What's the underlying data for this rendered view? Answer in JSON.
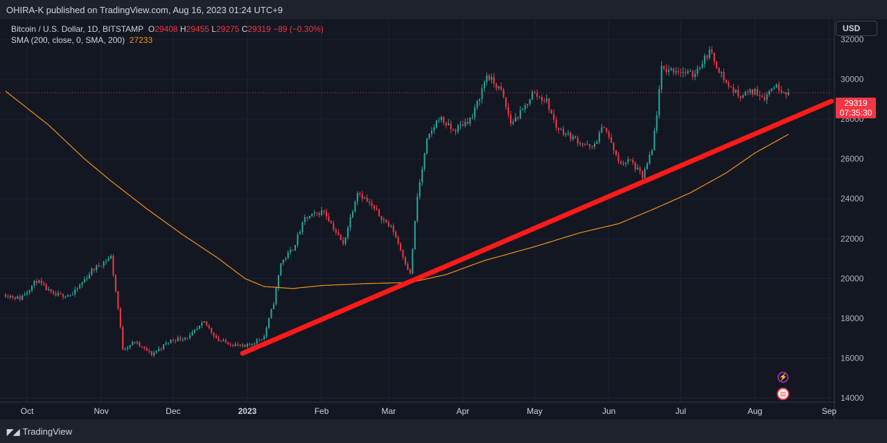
{
  "header": {
    "publisher": "OHIRA-K published on TradingView.com, Aug 16, 2023 01:24 UTC+9"
  },
  "legend": {
    "symbol": "Bitcoin / U.S. Dollar, 1D, BITSTAMP",
    "o_label": "O",
    "o_value": "29408",
    "h_label": "H",
    "h_value": "29455",
    "l_label": "L",
    "l_value": "29275",
    "c_label": "C",
    "c_value": "29319",
    "change": "−89 (−0.30%)",
    "sma_label": "SMA (200, close, 0, SMA, 200)",
    "sma_value": "27233"
  },
  "currency": "USD",
  "last_price": {
    "price": "29319",
    "countdown": "07:35:30"
  },
  "footer": {
    "brand": "TradingView"
  },
  "colors": {
    "up": "#26a69a",
    "down": "#f23645",
    "sma": "#f7931a",
    "trendline": "#ff1a1a",
    "background": "#131722",
    "grid": "#1f2330"
  },
  "icons": [
    "tv-logo-icon",
    "lightning-icon",
    "us-flag-icon"
  ],
  "chart_data": {
    "type": "candlestick",
    "symbol": "Bitcoin / U.S. Dollar, 1D, BITSTAMP",
    "x_ticks": [
      {
        "label": "Oct",
        "date": "2022-10-01"
      },
      {
        "label": "Nov",
        "date": "2022-11-01"
      },
      {
        "label": "Dec",
        "date": "2022-12-01"
      },
      {
        "label": "2023",
        "date": "2023-01-01"
      },
      {
        "label": "Feb",
        "date": "2023-02-01"
      },
      {
        "label": "Mar",
        "date": "2023-03-01"
      },
      {
        "label": "Apr",
        "date": "2023-04-01"
      },
      {
        "label": "May",
        "date": "2023-05-01"
      },
      {
        "label": "Jun",
        "date": "2023-06-01"
      },
      {
        "label": "Jul",
        "date": "2023-07-01"
      },
      {
        "label": "Aug",
        "date": "2023-08-01"
      },
      {
        "label": "Sep",
        "date": "2023-09-01"
      }
    ],
    "y_ticks": [
      14000,
      16000,
      18000,
      20000,
      22000,
      24000,
      26000,
      28000,
      30000,
      32000
    ],
    "ylim": [
      13800,
      33000
    ],
    "x_range": [
      "2022-09-22",
      "2023-09-02"
    ],
    "price_path": [
      [
        "2022-09-22",
        19200
      ],
      [
        "2022-09-28",
        19000
      ],
      [
        "2022-10-05",
        19900
      ],
      [
        "2022-10-12",
        19150
      ],
      [
        "2022-10-20",
        19200
      ],
      [
        "2022-10-28",
        20400
      ],
      [
        "2022-11-05",
        21100
      ],
      [
        "2022-11-08",
        18500
      ],
      [
        "2022-11-10",
        16500
      ],
      [
        "2022-11-15",
        16800
      ],
      [
        "2022-11-22",
        16200
      ],
      [
        "2022-11-30",
        16900
      ],
      [
        "2022-12-08",
        17100
      ],
      [
        "2022-12-14",
        17800
      ],
      [
        "2022-12-20",
        16900
      ],
      [
        "2022-12-31",
        16550
      ],
      [
        "2023-01-08",
        17100
      ],
      [
        "2023-01-12",
        18800
      ],
      [
        "2023-01-15",
        20800
      ],
      [
        "2023-01-20",
        21500
      ],
      [
        "2023-01-25",
        23000
      ],
      [
        "2023-02-02",
        23400
      ],
      [
        "2023-02-10",
        21700
      ],
      [
        "2023-02-16",
        24400
      ],
      [
        "2023-02-25",
        23200
      ],
      [
        "2023-03-03",
        22400
      ],
      [
        "2023-03-10",
        20200
      ],
      [
        "2023-03-13",
        24100
      ],
      [
        "2023-03-17",
        26900
      ],
      [
        "2023-03-22",
        28100
      ],
      [
        "2023-03-28",
        27400
      ],
      [
        "2023-04-05",
        28100
      ],
      [
        "2023-04-11",
        30200
      ],
      [
        "2023-04-17",
        29400
      ],
      [
        "2023-04-21",
        27800
      ],
      [
        "2023-04-26",
        28400
      ],
      [
        "2023-04-30",
        29300
      ],
      [
        "2023-05-06",
        28900
      ],
      [
        "2023-05-10",
        27600
      ],
      [
        "2023-05-15",
        27200
      ],
      [
        "2023-05-25",
        26500
      ],
      [
        "2023-05-30",
        27700
      ],
      [
        "2023-06-05",
        25800
      ],
      [
        "2023-06-10",
        25900
      ],
      [
        "2023-06-15",
        25100
      ],
      [
        "2023-06-19",
        26400
      ],
      [
        "2023-06-21",
        28300
      ],
      [
        "2023-06-23",
        30500
      ],
      [
        "2023-06-30",
        30450
      ],
      [
        "2023-07-06",
        30200
      ],
      [
        "2023-07-13",
        31400
      ],
      [
        "2023-07-20",
        29800
      ],
      [
        "2023-07-25",
        29200
      ],
      [
        "2023-08-01",
        29400
      ],
      [
        "2023-08-05",
        29100
      ],
      [
        "2023-08-09",
        29700
      ],
      [
        "2023-08-15",
        29319
      ]
    ],
    "sma200": [
      [
        "2022-09-22",
        29400
      ],
      [
        "2022-10-10",
        27700
      ],
      [
        "2022-10-25",
        26000
      ],
      [
        "2022-11-05",
        24900
      ],
      [
        "2022-11-20",
        23500
      ],
      [
        "2022-12-05",
        22200
      ],
      [
        "2022-12-20",
        21000
      ],
      [
        "2022-12-31",
        20000
      ],
      [
        "2023-01-08",
        19600
      ],
      [
        "2023-01-20",
        19500
      ],
      [
        "2023-02-01",
        19650
      ],
      [
        "2023-02-20",
        19750
      ],
      [
        "2023-03-10",
        19800
      ],
      [
        "2023-03-25",
        20200
      ],
      [
        "2023-04-10",
        20900
      ],
      [
        "2023-05-01",
        21600
      ],
      [
        "2023-05-20",
        22300
      ],
      [
        "2023-06-05",
        22750
      ],
      [
        "2023-06-20",
        23500
      ],
      [
        "2023-07-05",
        24300
      ],
      [
        "2023-07-20",
        25300
      ],
      [
        "2023-08-01",
        26300
      ],
      [
        "2023-08-15",
        27233
      ]
    ],
    "trendline": {
      "start": [
        "2022-12-30",
        16250
      ],
      "end": [
        "2023-09-02",
        28900
      ]
    },
    "last_close": 29319
  }
}
